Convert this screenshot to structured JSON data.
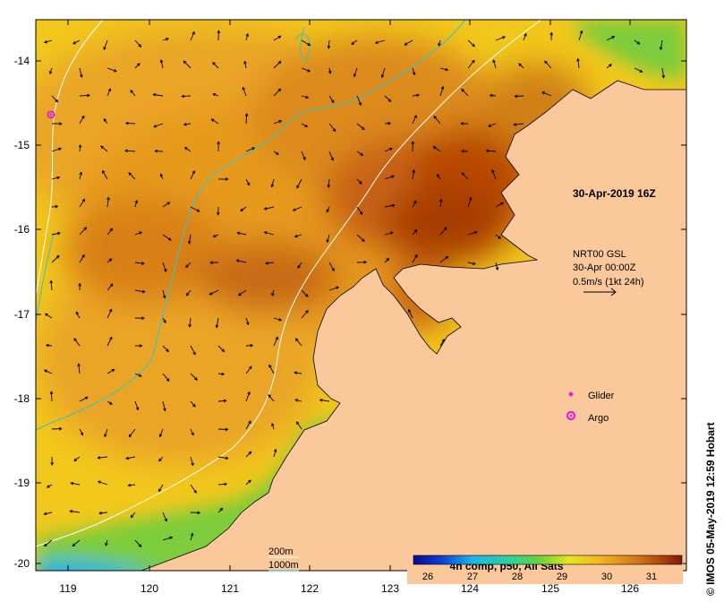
{
  "map": {
    "timestamp": "30-Apr-2019 16Z",
    "currents": {
      "source": "NRT00 GSL",
      "date": "30-Apr 00:00Z",
      "scale_label": "0.5m/s (1kt 24h)"
    },
    "legend": {
      "glider": "Glider",
      "argo": "Argo"
    },
    "isobaths": {
      "shallow": "200m",
      "deep": "1000m"
    },
    "colorbar": {
      "title": "4h comp, p50, All Sats",
      "ticks": [
        "26",
        "27",
        "28",
        "29",
        "30",
        "31"
      ]
    },
    "longitude_ticks": [
      "119",
      "120",
      "121",
      "122",
      "123",
      "124",
      "125",
      "126"
    ],
    "latitude_ticks": [
      "-14",
      "-15",
      "-16",
      "-17",
      "-18",
      "-19",
      "-20"
    ],
    "credit": "© IMOS 05-May-2019 12:59 Hobart"
  },
  "colors": {
    "land": "#fac89a",
    "warm": "#b84a05",
    "mid": "#e69a1e",
    "cool": "#f2c81c",
    "glider_argo": "#e020e0",
    "isobath_200": "#ffffff",
    "isobath_1000": "#40c0c0"
  }
}
